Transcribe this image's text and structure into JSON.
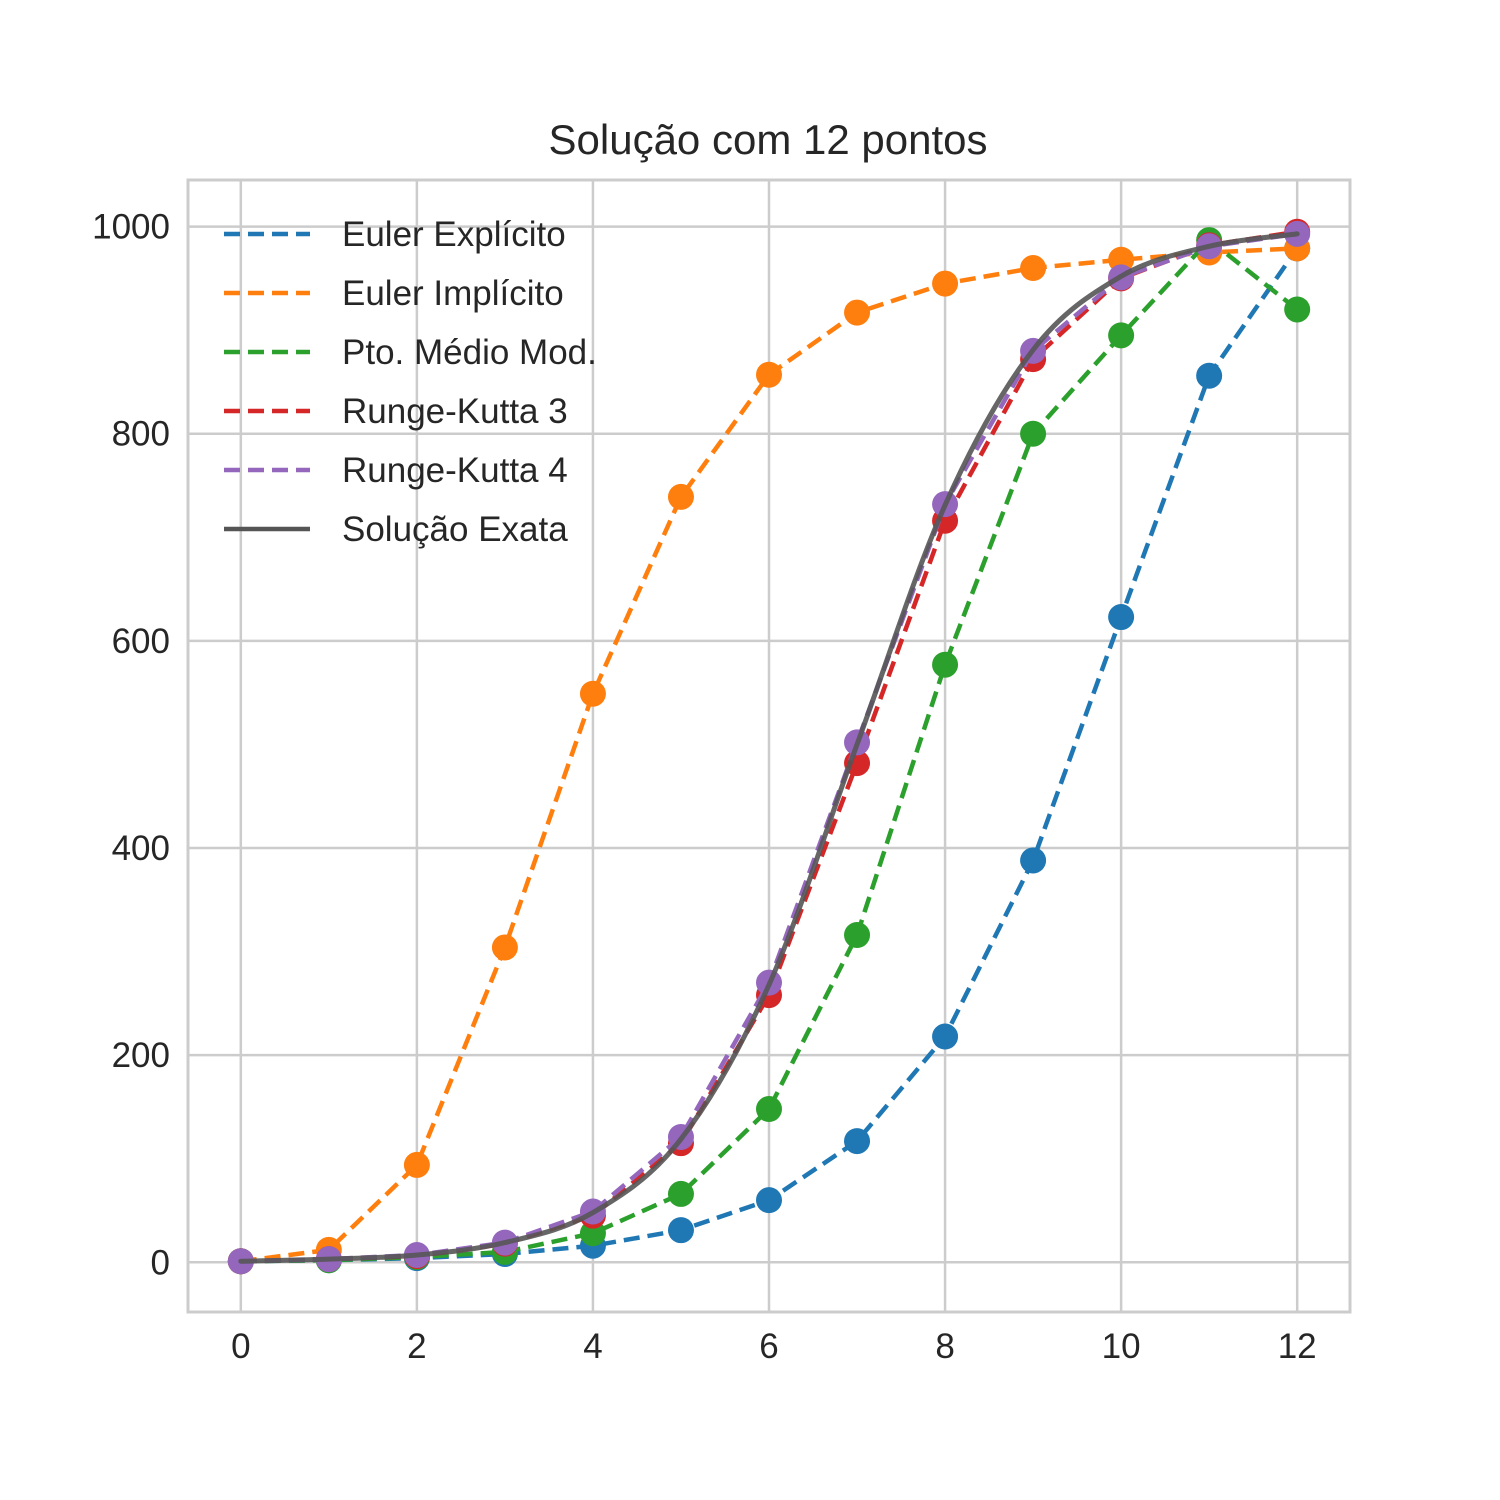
{
  "chart_data": {
    "type": "line",
    "title": "Solução com 12 pontos",
    "xlabel": "",
    "ylabel": "",
    "xlim": [
      -0.6,
      12.6
    ],
    "ylim": [
      -48,
      1045
    ],
    "xticks": [
      0,
      2,
      4,
      6,
      8,
      10,
      12
    ],
    "yticks": [
      0,
      200,
      400,
      600,
      800,
      1000
    ],
    "grid": true,
    "legend_position": "top-left",
    "x": [
      0,
      1,
      2,
      3,
      4,
      5,
      6,
      7,
      8,
      9,
      10,
      11,
      12
    ],
    "series": [
      {
        "name": "Euler Explícito",
        "color": "#1f77b4",
        "style": "dashed",
        "markers": true,
        "values": [
          1,
          2,
          4,
          8,
          16,
          31,
          60,
          117,
          218,
          388,
          623,
          856,
          979
        ]
      },
      {
        "name": "Euler Implícito",
        "color": "#ff7f0e",
        "style": "dashed",
        "markers": true,
        "values": [
          1,
          12,
          94,
          304,
          549,
          739,
          857,
          917,
          945,
          960,
          968,
          975,
          979
        ]
      },
      {
        "name": "Pto. Médio Mod.",
        "color": "#2ca02c",
        "style": "dashed",
        "markers": true,
        "values": [
          1,
          2,
          5,
          10,
          28,
          66,
          148,
          316,
          577,
          800,
          895,
          987,
          920
        ]
      },
      {
        "name": "Runge-Kutta 3",
        "color": "#d62728",
        "style": "dashed",
        "markers": true,
        "values": [
          1,
          3,
          6,
          18,
          45,
          115,
          258,
          482,
          716,
          872,
          950,
          982,
          995
        ]
      },
      {
        "name": "Runge-Kutta 4",
        "color": "#9467bd",
        "style": "dashed",
        "markers": true,
        "values": [
          1,
          3,
          7,
          19,
          49,
          121,
          270,
          502,
          732,
          880,
          951,
          981,
          993
        ]
      },
      {
        "name": "Solução Exata",
        "color": "#555555",
        "style": "solid",
        "markers": false,
        "values": [
          1,
          3,
          7,
          19,
          48,
          119,
          268,
          500,
          731,
          881,
          952,
          981,
          993
        ]
      }
    ]
  }
}
